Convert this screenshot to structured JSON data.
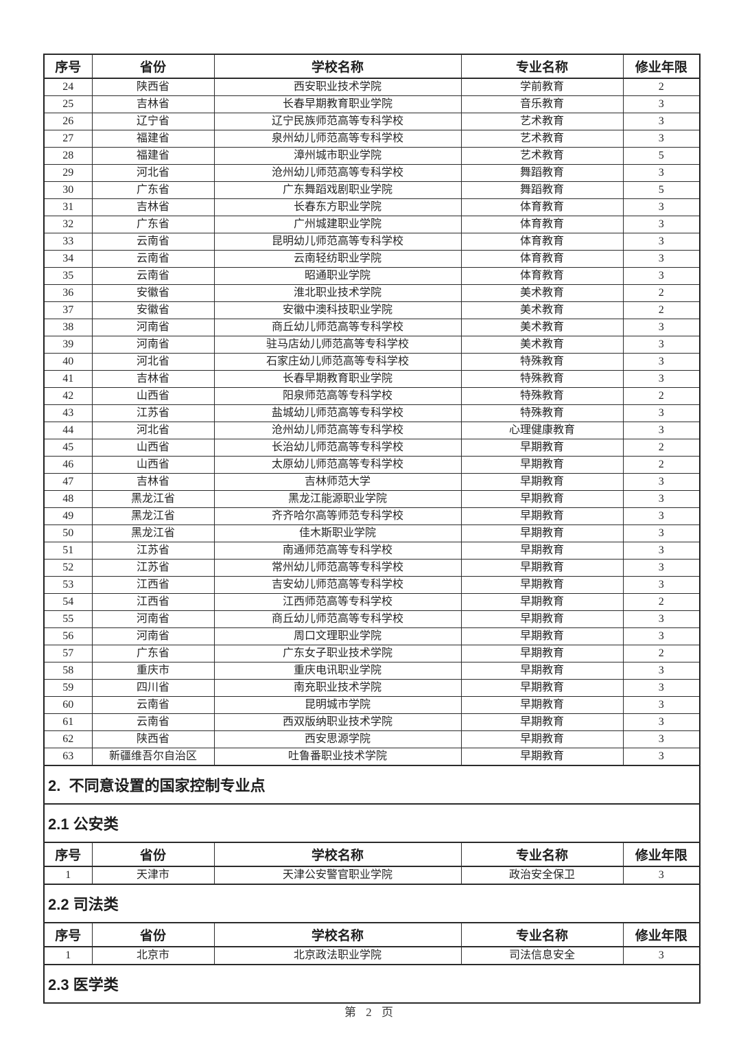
{
  "page": {
    "footer": "第 2 页"
  },
  "columns": [
    "序号",
    "省份",
    "学校名称",
    "专业名称",
    "修业年限"
  ],
  "blocks": [
    {
      "kind": "header"
    },
    {
      "kind": "rows",
      "rows": [
        [
          "24",
          "陕西省",
          "西安职业技术学院",
          "学前教育",
          "2"
        ],
        [
          "25",
          "吉林省",
          "长春早期教育职业学院",
          "音乐教育",
          "3"
        ],
        [
          "26",
          "辽宁省",
          "辽宁民族师范高等专科学校",
          "艺术教育",
          "3"
        ],
        [
          "27",
          "福建省",
          "泉州幼儿师范高等专科学校",
          "艺术教育",
          "3"
        ],
        [
          "28",
          "福建省",
          "漳州城市职业学院",
          "艺术教育",
          "5"
        ],
        [
          "29",
          "河北省",
          "沧州幼儿师范高等专科学校",
          "舞蹈教育",
          "3"
        ],
        [
          "30",
          "广东省",
          "广东舞蹈戏剧职业学院",
          "舞蹈教育",
          "5"
        ],
        [
          "31",
          "吉林省",
          "长春东方职业学院",
          "体育教育",
          "3"
        ],
        [
          "32",
          "广东省",
          "广州城建职业学院",
          "体育教育",
          "3"
        ],
        [
          "33",
          "云南省",
          "昆明幼儿师范高等专科学校",
          "体育教育",
          "3"
        ],
        [
          "34",
          "云南省",
          "云南轻纺职业学院",
          "体育教育",
          "3"
        ],
        [
          "35",
          "云南省",
          "昭通职业学院",
          "体育教育",
          "3"
        ],
        [
          "36",
          "安徽省",
          "淮北职业技术学院",
          "美术教育",
          "2"
        ],
        [
          "37",
          "安徽省",
          "安徽中澳科技职业学院",
          "美术教育",
          "2"
        ],
        [
          "38",
          "河南省",
          "商丘幼儿师范高等专科学校",
          "美术教育",
          "3"
        ],
        [
          "39",
          "河南省",
          "驻马店幼儿师范高等专科学校",
          "美术教育",
          "3"
        ],
        [
          "40",
          "河北省",
          "石家庄幼儿师范高等专科学校",
          "特殊教育",
          "3"
        ],
        [
          "41",
          "吉林省",
          "长春早期教育职业学院",
          "特殊教育",
          "3"
        ],
        [
          "42",
          "山西省",
          "阳泉师范高等专科学校",
          "特殊教育",
          "2"
        ],
        [
          "43",
          "江苏省",
          "盐城幼儿师范高等专科学校",
          "特殊教育",
          "3"
        ],
        [
          "44",
          "河北省",
          "沧州幼儿师范高等专科学校",
          "心理健康教育",
          "3"
        ],
        [
          "45",
          "山西省",
          "长治幼儿师范高等专科学校",
          "早期教育",
          "2"
        ],
        [
          "46",
          "山西省",
          "太原幼儿师范高等专科学校",
          "早期教育",
          "2"
        ],
        [
          "47",
          "吉林省",
          "吉林师范大学",
          "早期教育",
          "3"
        ],
        [
          "48",
          "黑龙江省",
          "黑龙江能源职业学院",
          "早期教育",
          "3"
        ],
        [
          "49",
          "黑龙江省",
          "齐齐哈尔高等师范专科学校",
          "早期教育",
          "3"
        ],
        [
          "50",
          "黑龙江省",
          "佳木斯职业学院",
          "早期教育",
          "3"
        ],
        [
          "51",
          "江苏省",
          "南通师范高等专科学校",
          "早期教育",
          "3"
        ],
        [
          "52",
          "江苏省",
          "常州幼儿师范高等专科学校",
          "早期教育",
          "3"
        ],
        [
          "53",
          "江西省",
          "吉安幼儿师范高等专科学校",
          "早期教育",
          "3"
        ],
        [
          "54",
          "江西省",
          "江西师范高等专科学校",
          "早期教育",
          "2"
        ],
        [
          "55",
          "河南省",
          "商丘幼儿师范高等专科学校",
          "早期教育",
          "3"
        ],
        [
          "56",
          "河南省",
          "周口文理职业学院",
          "早期教育",
          "3"
        ],
        [
          "57",
          "广东省",
          "广东女子职业技术学院",
          "早期教育",
          "2"
        ],
        [
          "58",
          "重庆市",
          "重庆电讯职业学院",
          "早期教育",
          "3"
        ],
        [
          "59",
          "四川省",
          "南充职业技术学院",
          "早期教育",
          "3"
        ],
        [
          "60",
          "云南省",
          "昆明城市学院",
          "早期教育",
          "3"
        ],
        [
          "61",
          "云南省",
          "西双版纳职业技术学院",
          "早期教育",
          "3"
        ],
        [
          "62",
          "陕西省",
          "西安思源学院",
          "早期教育",
          "3"
        ],
        [
          "63",
          "新疆维吾尔自治区",
          "吐鲁番职业技术学院",
          "早期教育",
          "3"
        ]
      ]
    },
    {
      "kind": "heading",
      "level": 1,
      "text": "2.  不同意设置的国家控制专业点"
    },
    {
      "kind": "heading",
      "level": 2,
      "text": "2.1 公安类"
    },
    {
      "kind": "header"
    },
    {
      "kind": "rows",
      "rows": [
        [
          "1",
          "天津市",
          "天津公安警官职业学院",
          "政治安全保卫",
          "3"
        ]
      ]
    },
    {
      "kind": "heading",
      "level": 2,
      "text": "2.2 司法类"
    },
    {
      "kind": "header"
    },
    {
      "kind": "rows",
      "rows": [
        [
          "1",
          "北京市",
          "北京政法职业学院",
          "司法信息安全",
          "3"
        ]
      ]
    },
    {
      "kind": "heading",
      "level": 2,
      "text": "2.3 医学类"
    }
  ]
}
